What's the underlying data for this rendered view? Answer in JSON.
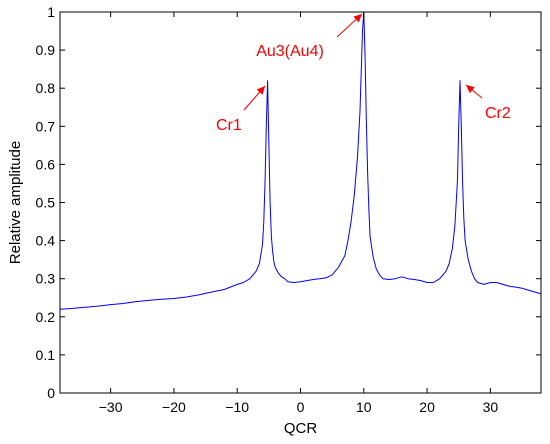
{
  "chart_data": {
    "type": "line",
    "title": "",
    "xlabel": "QCR",
    "ylabel": "Relative amplitude",
    "xlim": [
      -38,
      38
    ],
    "ylim": [
      0,
      1
    ],
    "xticks": [
      -30,
      -20,
      -10,
      0,
      10,
      20,
      30
    ],
    "yticks": [
      0,
      0.1,
      0.2,
      0.3,
      0.4,
      0.5,
      0.6,
      0.7,
      0.8,
      0.9,
      1
    ],
    "xtick_labels": [
      "−30",
      "−20",
      "−10",
      "0",
      "10",
      "20",
      "30"
    ],
    "ytick_labels": [
      "0",
      "0.1",
      "0.2",
      "0.3",
      "0.4",
      "0.5",
      "0.6",
      "0.7",
      "0.8",
      "0.9",
      "1"
    ],
    "grid": false,
    "series": [
      {
        "color": "#0000ff",
        "x": [
          -38,
          -36,
          -34,
          -32,
          -30,
          -28,
          -26,
          -24,
          -22,
          -20,
          -18,
          -16,
          -14,
          -12,
          -10,
          -9,
          -8,
          -7,
          -6.5,
          -6,
          -5.8,
          -5.6,
          -5.4,
          -5.2,
          -5,
          -4.8,
          -4.6,
          -4.4,
          -4.2,
          -4,
          -3.5,
          -3,
          -2.5,
          -2,
          -1,
          0,
          1,
          2,
          3,
          4,
          5,
          6,
          7,
          7.5,
          8,
          8.5,
          9,
          9.4,
          9.6,
          9.8,
          10,
          10.2,
          10.4,
          10.6,
          10.8,
          11,
          11.5,
          12,
          12.5,
          13,
          14,
          15,
          16,
          17,
          18,
          19,
          20,
          21,
          22,
          22.5,
          23,
          23.5,
          24,
          24.4,
          24.8,
          25,
          25.2,
          25.4,
          25.6,
          25.8,
          26,
          26.5,
          27,
          27.5,
          28,
          29,
          30,
          31,
          32,
          33,
          34,
          35,
          36,
          37,
          38
        ],
        "y": [
          0.22,
          0.222,
          0.225,
          0.228,
          0.232,
          0.235,
          0.24,
          0.243,
          0.246,
          0.248,
          0.252,
          0.258,
          0.265,
          0.272,
          0.285,
          0.29,
          0.3,
          0.32,
          0.34,
          0.39,
          0.45,
          0.56,
          0.7,
          0.82,
          0.65,
          0.5,
          0.41,
          0.37,
          0.345,
          0.33,
          0.315,
          0.305,
          0.3,
          0.292,
          0.29,
          0.292,
          0.295,
          0.298,
          0.3,
          0.302,
          0.31,
          0.33,
          0.36,
          0.4,
          0.45,
          0.52,
          0.62,
          0.74,
          0.85,
          0.95,
          1.0,
          0.88,
          0.72,
          0.58,
          0.48,
          0.41,
          0.355,
          0.325,
          0.31,
          0.3,
          0.298,
          0.3,
          0.305,
          0.3,
          0.298,
          0.295,
          0.29,
          0.29,
          0.3,
          0.31,
          0.32,
          0.34,
          0.38,
          0.44,
          0.56,
          0.7,
          0.82,
          0.7,
          0.56,
          0.46,
          0.4,
          0.35,
          0.32,
          0.3,
          0.29,
          0.285,
          0.29,
          0.29,
          0.285,
          0.28,
          0.278,
          0.275,
          0.27,
          0.265,
          0.26
        ]
      }
    ],
    "annotations": [
      {
        "text": "Au3(Au4)",
        "target_x": 10,
        "target_y": 1.0,
        "color": "#ff0000"
      },
      {
        "text": "Cr1",
        "target_x": -5.2,
        "target_y": 0.82,
        "color": "#ff0000"
      },
      {
        "text": "Cr2",
        "target_x": 25.2,
        "target_y": 0.82,
        "color": "#ff0000"
      }
    ]
  }
}
